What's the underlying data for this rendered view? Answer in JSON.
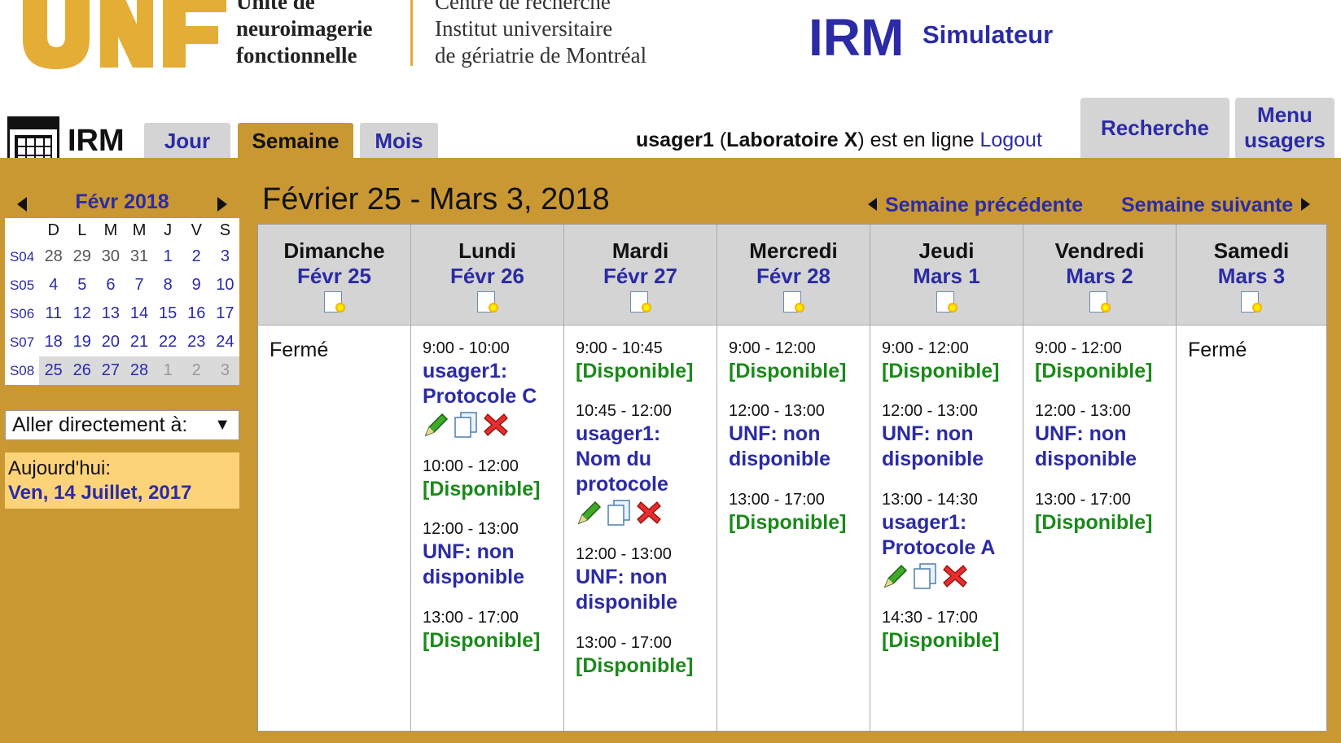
{
  "header": {
    "logo_text": "UNF",
    "org_line1": [
      "Unité de",
      "neuroimagerie",
      "fonctionnelle"
    ],
    "org_line2": [
      "Centre de recherche",
      "Institut universitaire",
      "de gériatrie de Montréal"
    ],
    "app_title": "IRM",
    "app_subtitle": "Simulateur",
    "brand_color": "#e3ad36"
  },
  "tabs": {
    "calendar_label": "IRM",
    "items": [
      {
        "label": "Jour",
        "active": false
      },
      {
        "label": "Semaine",
        "active": true
      },
      {
        "label": "Mois",
        "active": false
      }
    ],
    "user": "usager1",
    "lab": "Laboratoire X",
    "online_text": "est en ligne",
    "logout": "Logout",
    "search": "Recherche",
    "menu": [
      "Menu",
      "usagers"
    ]
  },
  "mini_calendar": {
    "month": "Févr 2018",
    "weekdays": [
      "D",
      "L",
      "M",
      "M",
      "J",
      "V",
      "S"
    ],
    "weeks": [
      {
        "label": "S04",
        "days": [
          "28",
          "29",
          "30",
          "31",
          "1",
          "2",
          "3"
        ]
      },
      {
        "label": "S05",
        "days": [
          "4",
          "5",
          "6",
          "7",
          "8",
          "9",
          "10"
        ]
      },
      {
        "label": "S06",
        "days": [
          "11",
          "12",
          "13",
          "14",
          "15",
          "16",
          "17"
        ]
      },
      {
        "label": "S07",
        "days": [
          "18",
          "19",
          "20",
          "21",
          "22",
          "23",
          "24"
        ]
      },
      {
        "label": "S08",
        "days": [
          "25",
          "26",
          "27",
          "28",
          "1",
          "2",
          "3"
        ]
      }
    ],
    "goto_label": "Aller directement à:",
    "today_label": "Aujourd'hui:",
    "today_value": "Ven, 14 Juillet, 2017"
  },
  "week": {
    "title": "Février 25 - Mars 3, 2018",
    "prev": "Semaine précédente",
    "next": "Semaine suivante",
    "days": [
      {
        "name": "Dimanche",
        "date": "Févr 25",
        "closed": "Fermé",
        "slots": []
      },
      {
        "name": "Lundi",
        "date": "Févr 26",
        "slots": [
          {
            "time": "9:00 - 10:00",
            "text": "usager1: Protocole C",
            "type": "booked"
          },
          {
            "time": "10:00 - 12:00",
            "text": "[Disponible]",
            "type": "free"
          },
          {
            "time": "12:00 - 13:00",
            "text": "UNF: non disponible",
            "type": "unavailable"
          },
          {
            "time": "13:00 - 17:00",
            "text": "[Disponible]",
            "type": "free"
          }
        ]
      },
      {
        "name": "Mardi",
        "date": "Févr 27",
        "slots": [
          {
            "time": "9:00 - 10:45",
            "text": "[Disponible]",
            "type": "free"
          },
          {
            "time": "10:45 - 12:00",
            "text": "usager1: Nom du protocole",
            "type": "booked"
          },
          {
            "time": "12:00 - 13:00",
            "text": "UNF: non disponible",
            "type": "unavailable"
          },
          {
            "time": "13:00 - 17:00",
            "text": "[Disponible]",
            "type": "free"
          }
        ]
      },
      {
        "name": "Mercredi",
        "date": "Févr 28",
        "slots": [
          {
            "time": "9:00 - 12:00",
            "text": "[Disponible]",
            "type": "free"
          },
          {
            "time": "12:00 - 13:00",
            "text": "UNF: non disponible",
            "type": "unavailable"
          },
          {
            "time": "13:00 - 17:00",
            "text": "[Disponible]",
            "type": "free"
          }
        ]
      },
      {
        "name": "Jeudi",
        "date": "Mars 1",
        "slots": [
          {
            "time": "9:00 - 12:00",
            "text": "[Disponible]",
            "type": "free"
          },
          {
            "time": "12:00 - 13:00",
            "text": "UNF: non disponible",
            "type": "unavailable"
          },
          {
            "time": "13:00 - 14:30",
            "text": "usager1: Protocole A",
            "type": "booked"
          },
          {
            "time": "14:30 - 17:00",
            "text": "[Disponible]",
            "type": "free"
          }
        ]
      },
      {
        "name": "Vendredi",
        "date": "Mars 2",
        "slots": [
          {
            "time": "9:00 - 12:00",
            "text": "[Disponible]",
            "type": "free"
          },
          {
            "time": "12:00 - 13:00",
            "text": "UNF: non disponible",
            "type": "unavailable"
          },
          {
            "time": "13:00 - 17:00",
            "text": "[Disponible]",
            "type": "free"
          }
        ]
      },
      {
        "name": "Samedi",
        "date": "Mars 3",
        "closed": "Fermé",
        "slots": []
      }
    ]
  },
  "colors": {
    "accent_gold": "#c99833",
    "link_blue": "#2b2ba6",
    "available_green": "#1a8a1a",
    "today_bg": "#fdd37a"
  }
}
